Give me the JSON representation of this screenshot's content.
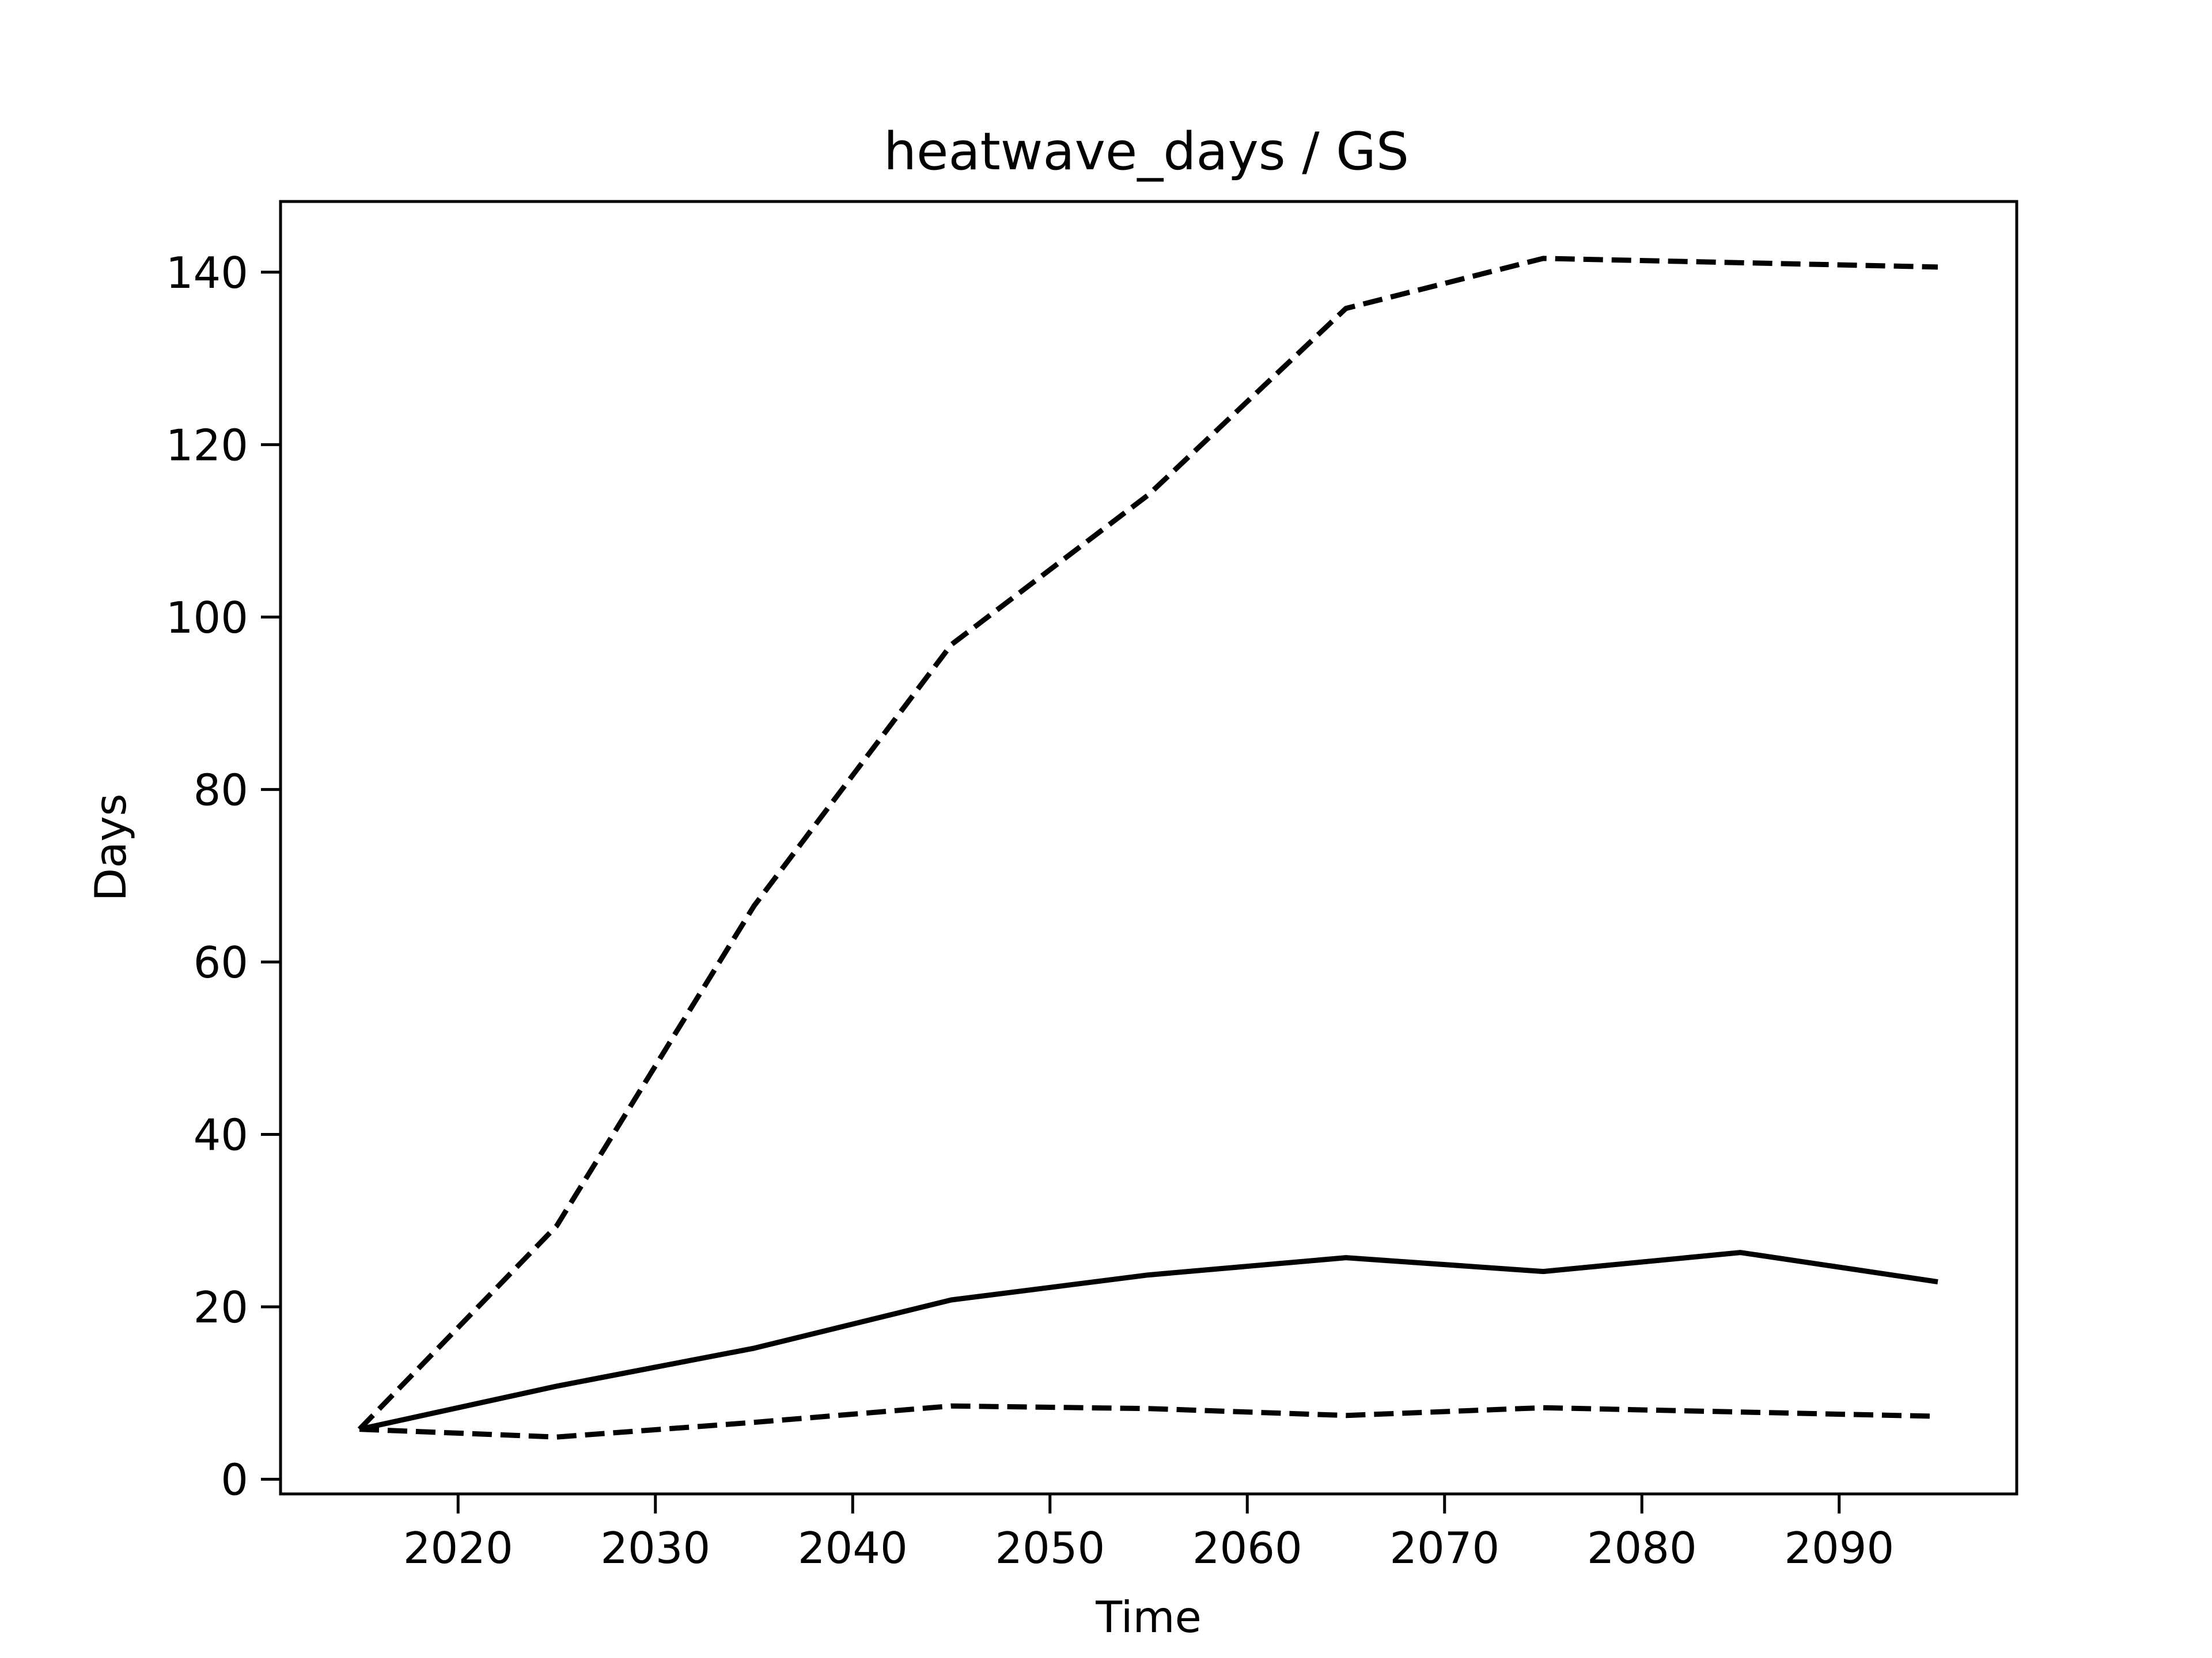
{
  "chart_data": {
    "type": "line",
    "title": "heatwave_days / GS",
    "xlabel": "Time",
    "ylabel": "Days",
    "x": [
      2015,
      2025,
      2035,
      2045,
      2055,
      2065,
      2075,
      2085,
      2095
    ],
    "xlim": [
      2011,
      2099
    ],
    "ylim": [
      -1.7,
      148.2
    ],
    "xticks": [
      2020,
      2030,
      2040,
      2050,
      2060,
      2070,
      2080,
      2090
    ],
    "yticks": [
      0,
      20,
      40,
      60,
      80,
      100,
      120,
      140
    ],
    "grid": false,
    "series": [
      {
        "style": "solid",
        "color": "#000000",
        "values": [
          5.8,
          10.8,
          15.2,
          20.8,
          23.7,
          25.7,
          24.1,
          26.3,
          22.9
        ]
      },
      {
        "style": "dashed",
        "color": "#000000",
        "values": [
          5.8,
          29.4,
          66.5,
          96.8,
          114.2,
          135.8,
          141.6,
          141.1,
          140.6
        ]
      },
      {
        "style": "dashed",
        "color": "#000000",
        "values": [
          5.8,
          4.9,
          6.6,
          8.5,
          8.2,
          7.4,
          8.3,
          7.8,
          7.3
        ]
      }
    ]
  }
}
